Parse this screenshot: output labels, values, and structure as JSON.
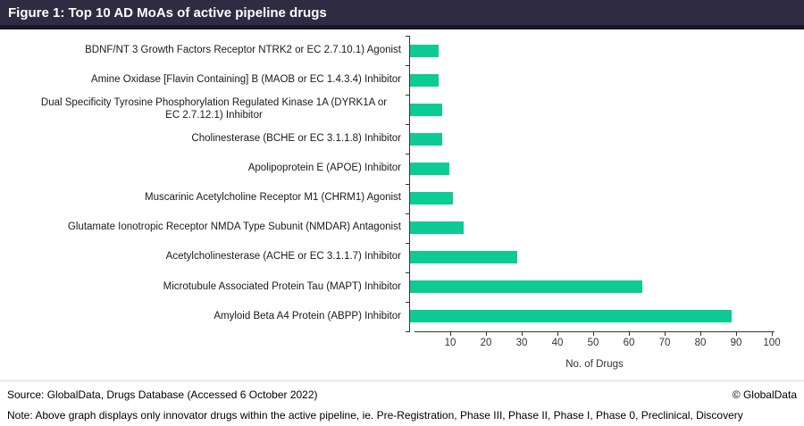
{
  "header": {
    "title": "Figure 1: Top 10 AD MoAs of active pipeline drugs"
  },
  "chart_data": {
    "type": "bar",
    "orientation": "horizontal",
    "title": "Top 10 AD MoAs of active pipeline drugs",
    "categories": [
      "BDNF/NT 3 Growth Factors Receptor  NTRK2 or EC 2.7.10.1) Agonist",
      "Amine Oxidase [Flavin Containing] B (MAOB or EC 1.4.3.4) Inhibitor",
      "Dual Specificity Tyrosine Phosphorylation Regulated Kinase 1A (DYRK1A or\nEC 2.7.12.1) Inhibitor",
      "Cholinesterase (BCHE or EC 3.1.1.8) Inhibitor",
      "Apolipoprotein E (APOE) Inhibitor",
      "Muscarinic Acetylcholine Receptor M1 (CHRM1) Agonist",
      "Glutamate Ionotropic Receptor NMDA Type Subunit (NMDAR) Antagonist",
      "Acetylcholinesterase (ACHE or EC 3.1.1.7) Inhibitor",
      "Microtubule Associated Protein Tau (MAPT) Inhibitor",
      "Amyloid Beta A4 Protein (ABPP) Inhibitor"
    ],
    "values": [
      8,
      8,
      9,
      9,
      11,
      12,
      15,
      30,
      65,
      90
    ],
    "xlabel": "No. of Drugs",
    "xlim": [
      0,
      100
    ],
    "xticks": [
      10,
      20,
      30,
      40,
      50,
      60,
      70,
      80,
      90,
      100
    ],
    "grid": false,
    "legend": false,
    "bar_color": "#0DCB94"
  },
  "footer": {
    "source": "Source: GlobalData, Drugs Database (Accessed 6 October 2022)",
    "copyright": "© GlobalData",
    "note": "Note: Above graph displays only innovator drugs within the active pipeline, ie. Pre-Registration, Phase III, Phase II, Phase I, Phase 0, Preclinical, Discovery"
  },
  "colors": {
    "header_bg": "#2F2B42",
    "header_strip": "#1A1729",
    "bar": "#0DCB94",
    "axis": "#333333"
  }
}
